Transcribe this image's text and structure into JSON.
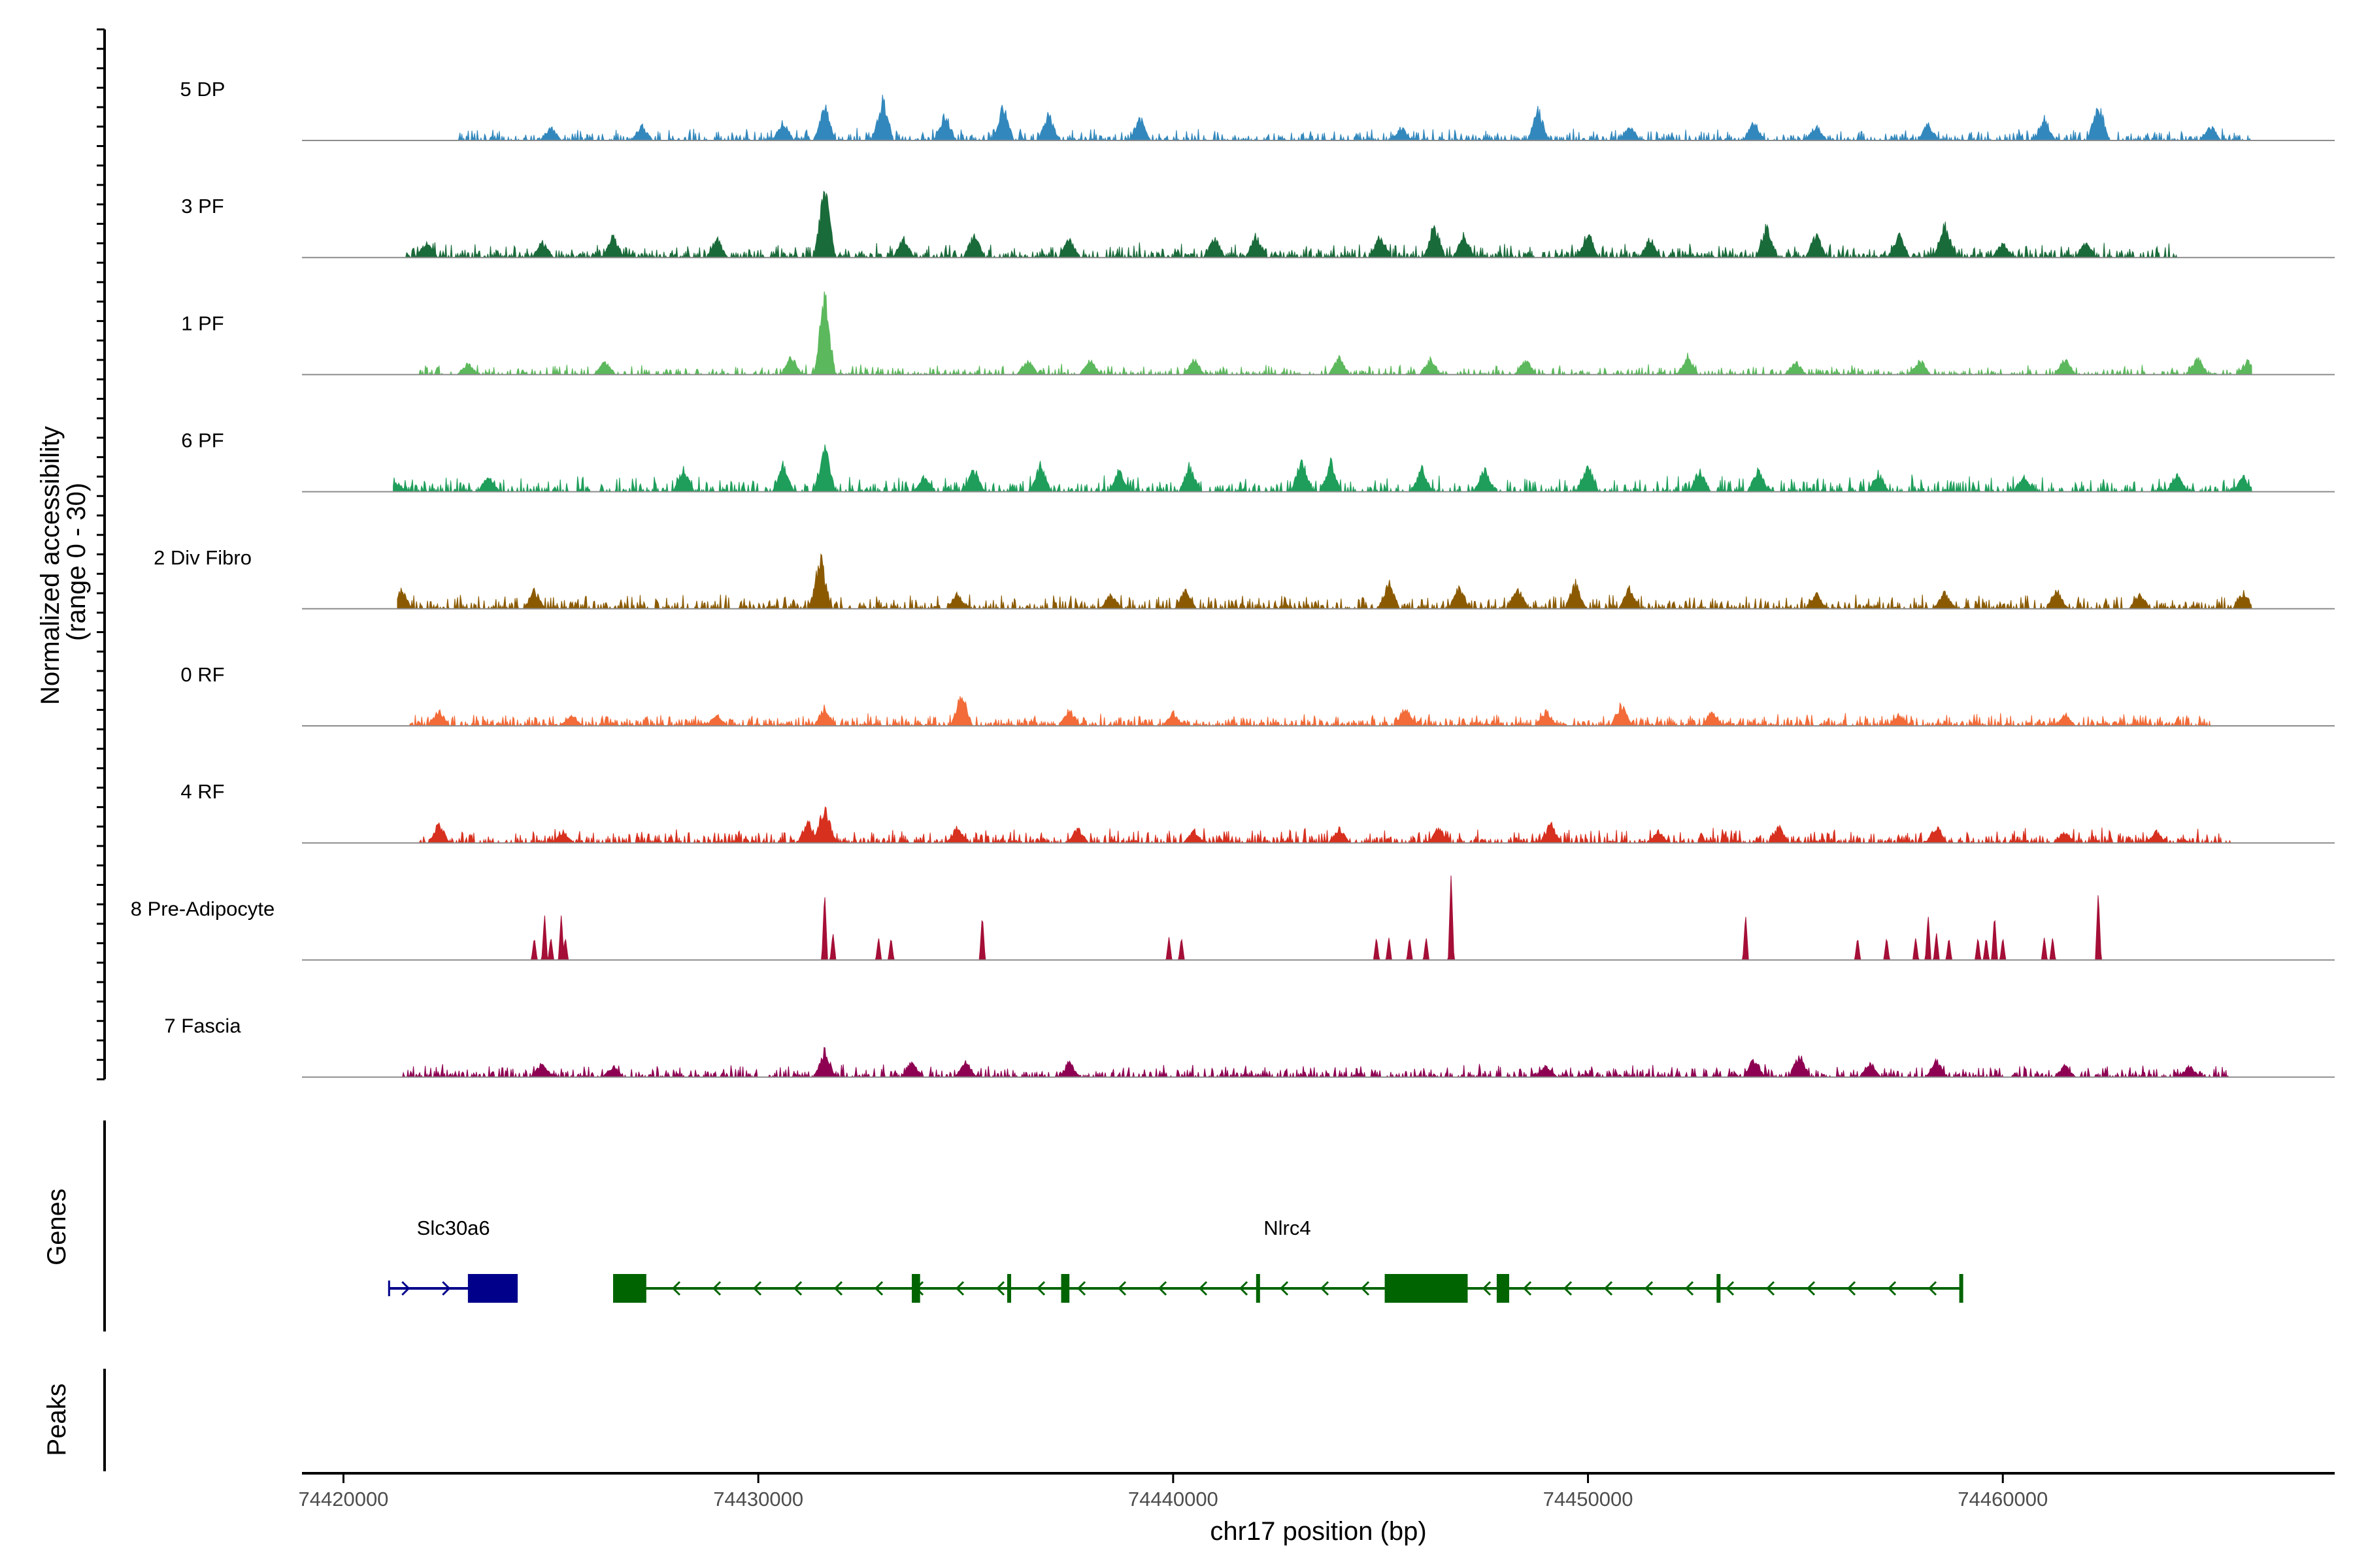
{
  "chart_data": {
    "type": "coverage",
    "chromosome": "chr17",
    "x_range": [
      74419000,
      74468000
    ],
    "ylabel_line1": "Normalized accessibility",
    "ylabel_line2": "(range 0 - 30)",
    "xlabel": "chr17 position (bp)",
    "x_ticks": [
      {
        "value": 74420000,
        "label": "74420000"
      },
      {
        "value": 74430000,
        "label": "74430000"
      },
      {
        "value": 74440000,
        "label": "74440000"
      },
      {
        "value": 74450000,
        "label": "74450000"
      },
      {
        "value": 74460000,
        "label": "74460000"
      }
    ],
    "tracks": [
      {
        "name": "5 DP",
        "color": "#3288BD",
        "style": "dense",
        "start": 74422700,
        "end": 74466000,
        "base": 0.06,
        "density": 0.42,
        "peaks": [
          [
            74425000,
            0.18
          ],
          [
            74427200,
            0.2
          ],
          [
            74430600,
            0.25
          ],
          [
            74431600,
            0.45
          ],
          [
            74433000,
            0.55
          ],
          [
            74434500,
            0.35
          ],
          [
            74435900,
            0.45
          ],
          [
            74437000,
            0.35
          ],
          [
            74439200,
            0.3
          ],
          [
            74445500,
            0.18
          ],
          [
            74448800,
            0.4
          ],
          [
            74451000,
            0.2
          ],
          [
            74454000,
            0.25
          ],
          [
            74455500,
            0.2
          ],
          [
            74458200,
            0.22
          ],
          [
            74461000,
            0.3
          ],
          [
            74462300,
            0.5
          ],
          [
            74465000,
            0.2
          ]
        ]
      },
      {
        "name": "3 PF",
        "color": "#1A6B3A",
        "style": "dense",
        "start": 74421500,
        "end": 74464200,
        "base": 0.07,
        "density": 0.52,
        "peaks": [
          [
            74422000,
            0.2
          ],
          [
            74424800,
            0.22
          ],
          [
            74426500,
            0.3
          ],
          [
            74429000,
            0.25
          ],
          [
            74431600,
            0.9
          ],
          [
            74433500,
            0.25
          ],
          [
            74435200,
            0.3
          ],
          [
            74437500,
            0.25
          ],
          [
            74441000,
            0.25
          ],
          [
            74442000,
            0.3
          ],
          [
            74445000,
            0.3
          ],
          [
            74446300,
            0.45
          ],
          [
            74447000,
            0.3
          ],
          [
            74450000,
            0.35
          ],
          [
            74451500,
            0.25
          ],
          [
            74454300,
            0.4
          ],
          [
            74455500,
            0.3
          ],
          [
            74457500,
            0.3
          ],
          [
            74458600,
            0.45
          ],
          [
            74460000,
            0.2
          ],
          [
            74462000,
            0.2
          ]
        ]
      },
      {
        "name": "1 PF",
        "color": "#5CB85C",
        "style": "dense",
        "start": 74421800,
        "end": 74466000,
        "base": 0.05,
        "density": 0.36,
        "peaks": [
          [
            74423000,
            0.15
          ],
          [
            74426300,
            0.2
          ],
          [
            74430800,
            0.25
          ],
          [
            74431600,
            1.0
          ],
          [
            74436500,
            0.2
          ],
          [
            74438000,
            0.2
          ],
          [
            74440500,
            0.2
          ],
          [
            74444000,
            0.22
          ],
          [
            74446200,
            0.2
          ],
          [
            74448500,
            0.2
          ],
          [
            74452400,
            0.25
          ],
          [
            74455000,
            0.18
          ],
          [
            74458000,
            0.2
          ],
          [
            74461500,
            0.2
          ],
          [
            74464700,
            0.22
          ],
          [
            74465900,
            0.18
          ]
        ]
      },
      {
        "name": "6 PF",
        "color": "#1E9E5A",
        "style": "dense",
        "start": 74421200,
        "end": 74466000,
        "base": 0.08,
        "density": 0.42,
        "peaks": [
          [
            74421300,
            0.12
          ],
          [
            74423500,
            0.22
          ],
          [
            74428200,
            0.3
          ],
          [
            74430600,
            0.35
          ],
          [
            74431600,
            0.6
          ],
          [
            74434000,
            0.2
          ],
          [
            74435200,
            0.3
          ],
          [
            74436800,
            0.35
          ],
          [
            74438700,
            0.3
          ],
          [
            74440400,
            0.35
          ],
          [
            74443100,
            0.45
          ],
          [
            74443800,
            0.4
          ],
          [
            74446000,
            0.3
          ],
          [
            74447500,
            0.3
          ],
          [
            74450000,
            0.35
          ],
          [
            74452700,
            0.3
          ],
          [
            74454100,
            0.3
          ],
          [
            74457000,
            0.25
          ],
          [
            74460500,
            0.2
          ],
          [
            74464200,
            0.25
          ],
          [
            74465800,
            0.2
          ]
        ]
      },
      {
        "name": "2 Div Fibro",
        "color": "#8B5A00",
        "style": "dense",
        "start": 74421300,
        "end": 74466000,
        "base": 0.07,
        "density": 0.45,
        "peaks": [
          [
            74421400,
            0.25
          ],
          [
            74424600,
            0.25
          ],
          [
            74431500,
            0.7
          ],
          [
            74434800,
            0.2
          ],
          [
            74438500,
            0.2
          ],
          [
            74440300,
            0.25
          ],
          [
            74445200,
            0.35
          ],
          [
            74446900,
            0.3
          ],
          [
            74448300,
            0.3
          ],
          [
            74449700,
            0.35
          ],
          [
            74451000,
            0.28
          ],
          [
            74455500,
            0.2
          ],
          [
            74458600,
            0.22
          ],
          [
            74461300,
            0.25
          ],
          [
            74463300,
            0.2
          ],
          [
            74465800,
            0.22
          ]
        ]
      },
      {
        "name": "0 RF",
        "color": "#F26B38",
        "style": "dense",
        "start": 74421600,
        "end": 74465000,
        "base": 0.06,
        "density": 0.55,
        "peaks": [
          [
            74422300,
            0.2
          ],
          [
            74425500,
            0.15
          ],
          [
            74429000,
            0.15
          ],
          [
            74431600,
            0.25
          ],
          [
            74434900,
            0.45
          ],
          [
            74437500,
            0.22
          ],
          [
            74440000,
            0.18
          ],
          [
            74445600,
            0.25
          ],
          [
            74449000,
            0.2
          ],
          [
            74450800,
            0.28
          ],
          [
            74453000,
            0.2
          ],
          [
            74457500,
            0.15
          ],
          [
            74461500,
            0.15
          ]
        ]
      },
      {
        "name": "4 RF",
        "color": "#D7301F",
        "style": "dense",
        "start": 74421800,
        "end": 74465500,
        "base": 0.07,
        "density": 0.5,
        "peaks": [
          [
            74422300,
            0.25
          ],
          [
            74425300,
            0.15
          ],
          [
            74431200,
            0.3
          ],
          [
            74431600,
            0.5
          ],
          [
            74434800,
            0.22
          ],
          [
            74437700,
            0.2
          ],
          [
            74440500,
            0.15
          ],
          [
            74444000,
            0.2
          ],
          [
            74446400,
            0.2
          ],
          [
            74449100,
            0.25
          ],
          [
            74451700,
            0.15
          ],
          [
            74454600,
            0.22
          ],
          [
            74458400,
            0.22
          ],
          [
            74461500,
            0.15
          ],
          [
            74463700,
            0.15
          ]
        ]
      },
      {
        "name": "8 Pre-Adipocyte",
        "color": "#A50F37",
        "style": "spikes",
        "start": 74424500,
        "end": 74462500,
        "base": 0,
        "density": 0,
        "peaks": [
          [
            74424600,
            0.25
          ],
          [
            74424850,
            0.5
          ],
          [
            74425000,
            0.25
          ],
          [
            74425250,
            0.5
          ],
          [
            74425350,
            0.25
          ],
          [
            74431600,
            0.75
          ],
          [
            74431800,
            0.3
          ],
          [
            74432900,
            0.25
          ],
          [
            74433200,
            0.25
          ],
          [
            74435400,
            0.5
          ],
          [
            74439900,
            0.25
          ],
          [
            74440200,
            0.25
          ],
          [
            74444900,
            0.25
          ],
          [
            74445200,
            0.25
          ],
          [
            74445700,
            0.25
          ],
          [
            74446100,
            0.25
          ],
          [
            74446700,
            0.95
          ],
          [
            74453800,
            0.5
          ],
          [
            74456500,
            0.25
          ],
          [
            74457200,
            0.25
          ],
          [
            74457900,
            0.25
          ],
          [
            74458200,
            0.5
          ],
          [
            74458400,
            0.3
          ],
          [
            74458700,
            0.25
          ],
          [
            74459400,
            0.25
          ],
          [
            74459600,
            0.25
          ],
          [
            74459800,
            0.5
          ],
          [
            74460000,
            0.25
          ],
          [
            74461000,
            0.25
          ],
          [
            74461200,
            0.25
          ],
          [
            74462300,
            0.75
          ]
        ]
      },
      {
        "name": "7 Fascia",
        "color": "#8E0152",
        "style": "dense",
        "start": 74421400,
        "end": 74465500,
        "base": 0.06,
        "density": 0.45,
        "peaks": [
          [
            74424800,
            0.2
          ],
          [
            74426500,
            0.15
          ],
          [
            74431600,
            0.35
          ],
          [
            74433700,
            0.2
          ],
          [
            74435000,
            0.2
          ],
          [
            74437500,
            0.2
          ],
          [
            74449000,
            0.15
          ],
          [
            74454000,
            0.25
          ],
          [
            74455100,
            0.3
          ],
          [
            74456800,
            0.2
          ],
          [
            74458400,
            0.22
          ],
          [
            74461500,
            0.15
          ],
          [
            74464500,
            0.15
          ]
        ]
      }
    ],
    "gene_track_label": "Genes",
    "peaks_track_label": "Peaks",
    "genes": [
      {
        "name": "Slc30a6",
        "strand": "+",
        "color": "#00008B",
        "start": 74421100,
        "end": 74424200,
        "exons": [
          [
            74423000,
            74424200
          ]
        ],
        "marks": [
          [
            74421100,
            74421100
          ]
        ]
      },
      {
        "name": "Nlrc4",
        "strand": "-",
        "color": "#006400",
        "start": 74426500,
        "end": 74459000,
        "exons": [
          [
            74426500,
            74427300
          ],
          [
            74433700,
            74433900
          ],
          [
            74436000,
            74436050
          ],
          [
            74437300,
            74437500
          ],
          [
            74442000,
            74442050
          ],
          [
            74445100,
            74447100
          ],
          [
            74447800,
            74448100
          ],
          [
            74453100,
            74453150
          ],
          [
            74458950,
            74459000
          ]
        ],
        "marks": []
      }
    ]
  }
}
